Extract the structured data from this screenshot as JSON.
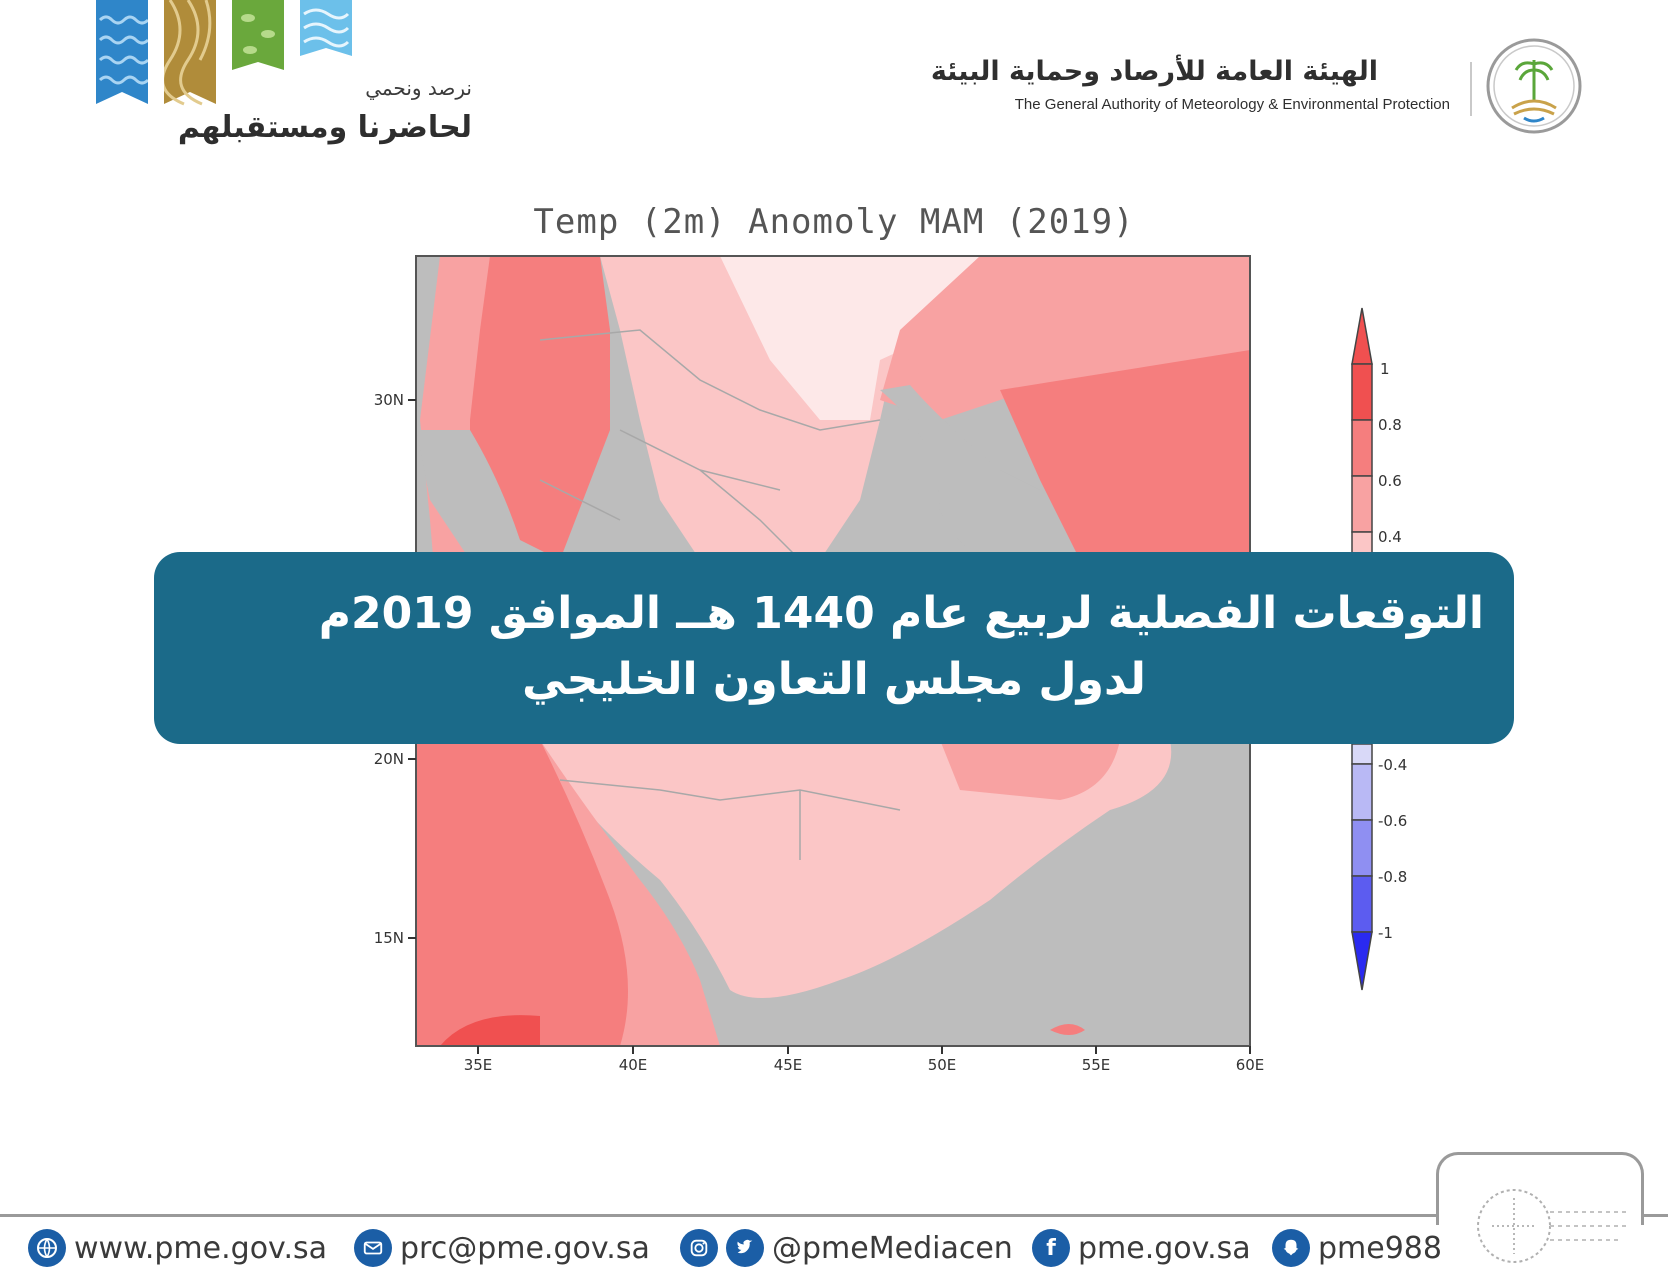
{
  "header": {
    "campaign_tagline_small": "نرصد ونحمي",
    "campaign_tagline_big": "لحاضرنا ومستقبلهم",
    "authority_name_ar": "الهيئة العامة للأرصاد وحماية البيئة",
    "authority_name_en": "The General Authority of Meteorology & Environmental Protection"
  },
  "map": {
    "title": "Temp (2m) Anomoly MAM (2019)",
    "lat_labels": [
      "30N",
      "20N",
      "15N"
    ],
    "lon_labels": [
      "35E",
      "40E",
      "45E",
      "50E",
      "55E",
      "60E"
    ],
    "colorbar_labels": [
      "1",
      "0.8",
      "0.6",
      "0.4",
      "-0.4",
      "-0.6",
      "-0.8",
      "-1"
    ],
    "colors": {
      "land_mask": "#bdbdbd",
      "anomaly_0_2": "#fde8e8",
      "anomaly_0_4": "#fbc6c6",
      "anomaly_0_6": "#f8a2a2",
      "anomaly_0_8": "#f57e7e",
      "anomaly_1": "#f05050",
      "neg_0_4": "#b9b9f5",
      "neg_0_6": "#8f8ff2",
      "neg_0_8": "#5c5cf0",
      "neg_1": "#2a2af0"
    }
  },
  "overlay": {
    "line1": "التوقعات الفصلية  لربيع عام 1440 هــ الموافق 2019م",
    "line2": "لدول مجلس التعاون الخليجي"
  },
  "footer": {
    "website": "www.pme.gov.sa",
    "email": "prc@pme.gov.sa",
    "social_handle": "@pmeMediacen",
    "facebook": "pme.gov.sa",
    "snapchat": "pme988",
    "accent_color": "#1b5ea6"
  }
}
